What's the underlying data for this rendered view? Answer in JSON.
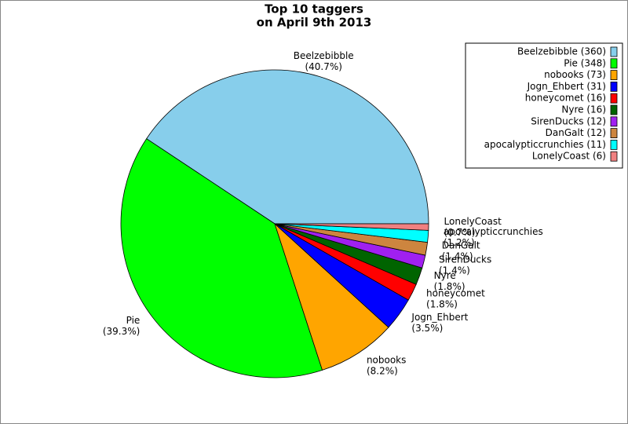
{
  "chart_data": {
    "type": "pie",
    "title": "Top 10 taggers",
    "subtitle": "on April 9th 2013",
    "categories": [
      "Beelzebibble",
      "Pie",
      "nobooks",
      "Jogn_Ehbert",
      "honeycomet",
      "Nyre",
      "SirenDucks",
      "DanGalt",
      "apocalypticcrunchies",
      "LonelyCoast"
    ],
    "values": [
      360,
      348,
      73,
      31,
      16,
      16,
      12,
      12,
      11,
      6
    ],
    "percent_labels": [
      "(40.7%)",
      "(39.3%)",
      "(8.2%)",
      "(3.5%)",
      "(1.8%)",
      "(1.8%)",
      "(1.4%)",
      "(1.4%)",
      "(1.2%)",
      "(0.7%)"
    ],
    "legend_labels": [
      "Beelzebibble (360)",
      "Pie (348)",
      "nobooks (73)",
      "Jogn_Ehbert (31)",
      "honeycomet (16)",
      "Nyre (16)",
      "SirenDucks (12)",
      "DanGalt (12)",
      "apocalypticcrunchies (11)",
      "LonelyCoast (6)"
    ],
    "colors": [
      "#87ceeb",
      "#00ff00",
      "#ffa500",
      "#0000ff",
      "#ff0000",
      "#006400",
      "#a020f0",
      "#cd853f",
      "#00ffff",
      "#f08080"
    ],
    "legend": "upper right"
  }
}
